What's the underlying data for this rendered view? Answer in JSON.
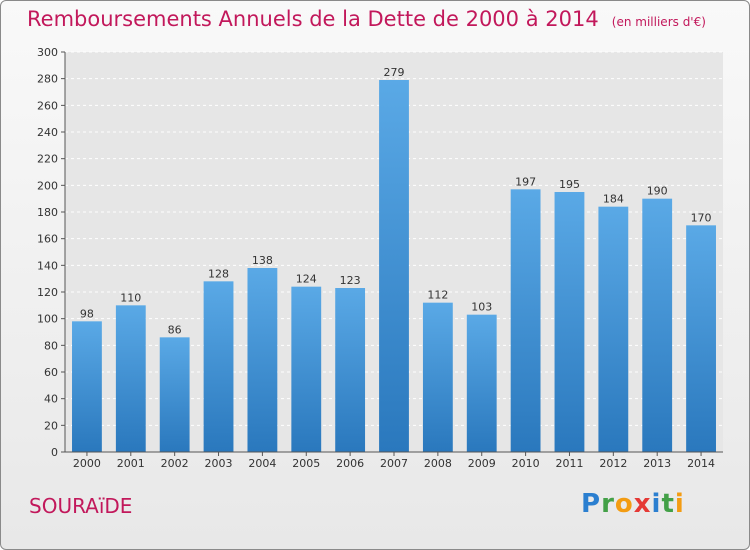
{
  "header": {
    "title": "Remboursements Annuels de la Dette de 2000 à 2014",
    "subtitle": "(en milliers d'€)"
  },
  "footer": {
    "commune": "SOURAïDE",
    "brand_letters": [
      {
        "ch": "P",
        "color": "#2b7fd0"
      },
      {
        "ch": "r",
        "color": "#43a047"
      },
      {
        "ch": "o",
        "color": "#f39c12"
      },
      {
        "ch": "x",
        "color": "#e53935"
      },
      {
        "ch": "i",
        "color": "#2b7fd0"
      },
      {
        "ch": "t",
        "color": "#43a047"
      },
      {
        "ch": "i",
        "color": "#f39c12"
      }
    ]
  },
  "chart_data": {
    "type": "bar",
    "categories": [
      "2000",
      "2001",
      "2002",
      "2003",
      "2004",
      "2005",
      "2006",
      "2007",
      "2008",
      "2009",
      "2010",
      "2011",
      "2012",
      "2013",
      "2014"
    ],
    "values": [
      98,
      110,
      86,
      128,
      138,
      124,
      123,
      279,
      112,
      103,
      197,
      195,
      184,
      190,
      170
    ],
    "ylim": [
      0,
      300
    ],
    "ytick_step": 20,
    "grid": true,
    "bar_color_top": "#5aa9e6",
    "bar_color_bottom": "#2a78bd"
  }
}
